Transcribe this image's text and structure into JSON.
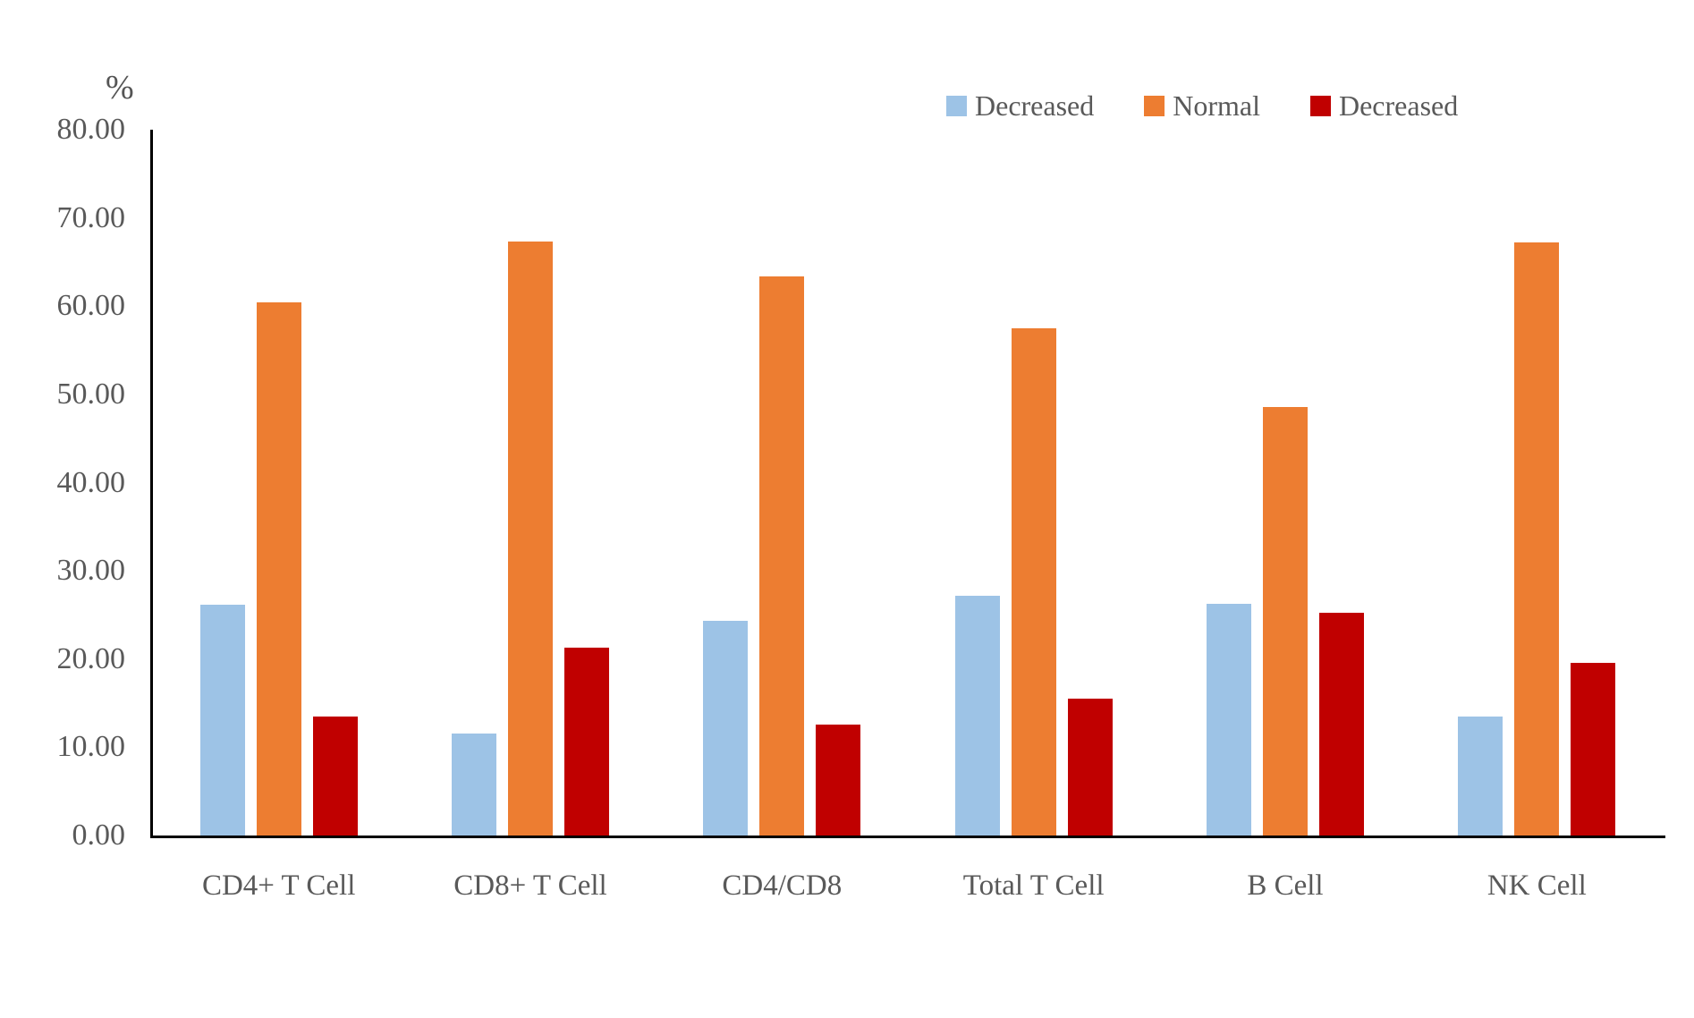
{
  "chart_data": {
    "type": "bar",
    "title": "",
    "ylabel": "%",
    "xlabel": "",
    "categories": [
      "CD4+ T Cell",
      "CD8+ T Cell",
      "CD4/CD8",
      "Total T Cell",
      "B Cell",
      "NK Cell"
    ],
    "series": [
      {
        "name": "Decreased",
        "color": "#9DC3E6",
        "values": [
          26.2,
          11.6,
          24.3,
          27.2,
          26.3,
          13.5
        ]
      },
      {
        "name": "Normal",
        "color": "#ED7D31",
        "values": [
          60.4,
          67.3,
          63.4,
          57.5,
          48.6,
          67.2
        ]
      },
      {
        "name": "Decreased",
        "color": "#C00000",
        "values": [
          13.5,
          21.3,
          12.6,
          15.5,
          25.2,
          19.6
        ]
      }
    ],
    "ylim": [
      0,
      80
    ],
    "y_ticks": [
      "80.00",
      "70.00",
      "60.00",
      "50.00",
      "40.00",
      "30.00",
      "20.00",
      "10.00",
      "0.00"
    ],
    "grid": false,
    "legend_position": "top-right"
  }
}
